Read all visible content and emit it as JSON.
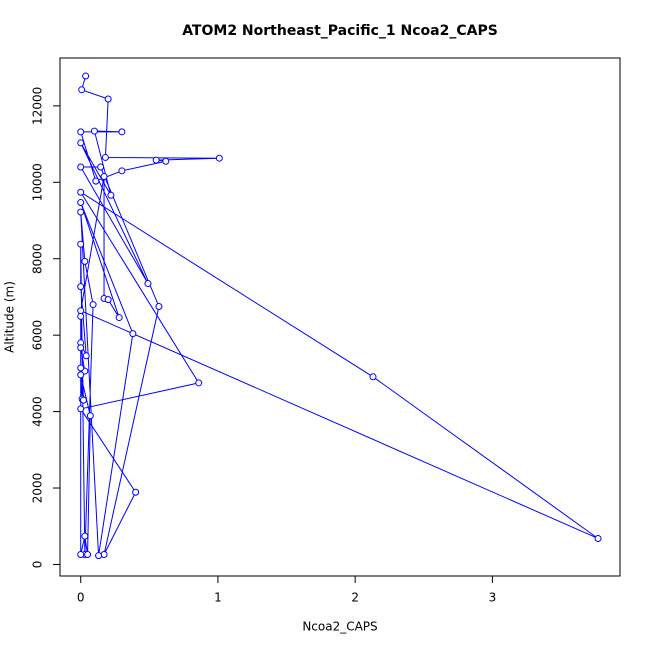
{
  "chart_data": {
    "type": "line",
    "title": "ATOM2 Northeast_Pacific_1 Ncoa2_CAPS",
    "x_label": "Ncoa2_CAPS",
    "y_label": "Altitude (m)",
    "color": "#0000ff",
    "markers": true,
    "x": [
      0.036,
      0.007,
      0.2,
      0.18,
      1.01,
      0.55,
      0.62,
      0.3,
      0.11,
      0,
      0.3,
      0.1,
      0.22,
      0,
      0.49,
      0,
      0.145,
      0.57,
      0.17,
      0.4,
      0,
      0.86,
      0,
      2.13,
      3.77,
      0,
      0.17,
      0.17,
      0.2,
      0.28,
      0,
      0.38,
      0.13,
      0,
      0.03,
      0.09,
      0.03,
      0,
      0,
      0.04,
      0,
      0,
      0.03,
      0,
      0.01,
      0,
      0.07,
      0.05,
      0.03,
      0,
      0,
      0.02
    ],
    "values": [
      12780,
      12420,
      12180,
      10650,
      10630,
      10580,
      10550,
      10300,
      10030,
      11320,
      11320,
      11340,
      9660,
      11030,
      7350,
      10400,
      10400,
      6750,
      260,
      1890,
      4070,
      4750,
      9740,
      4910,
      680,
      6640,
      10150,
      6960,
      6930,
      6460,
      9470,
      6040,
      230,
      9220,
      7930,
      6800,
      260,
      8380,
      7270,
      5460,
      5800,
      5670,
      5060,
      5140,
      4330,
      4960,
      3890,
      260,
      740,
      260,
      6490,
      4300
    ],
    "xlim": [
      -0.151,
      3.93
    ],
    "ylim": [
      -302,
      13252
    ],
    "xticks": [
      0,
      1,
      2,
      3
    ],
    "yticks": [
      0,
      2000,
      4000,
      6000,
      8000,
      10000,
      12000
    ]
  }
}
